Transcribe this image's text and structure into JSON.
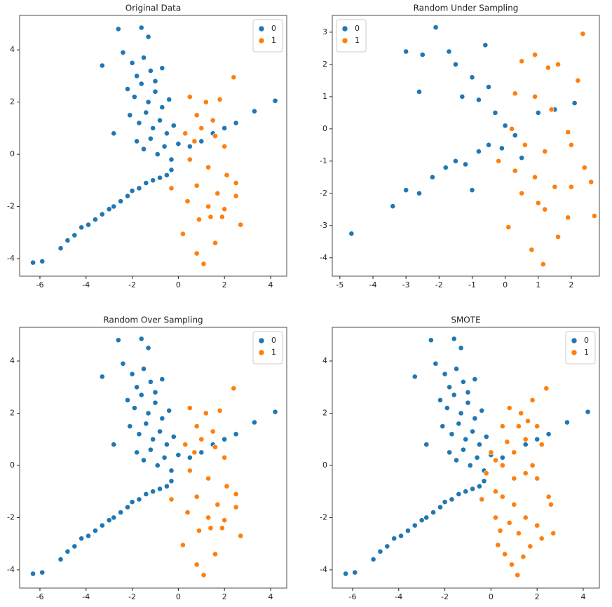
{
  "chart_data": [
    {
      "type": "scatter",
      "title": "Original Data",
      "xlim": [
        -6.88,
        4.7
      ],
      "ylim": [
        -4.67,
        5.32
      ],
      "xticks": [
        -6,
        -4,
        -2,
        0,
        2,
        4
      ],
      "yticks": [
        -4,
        -2,
        0,
        2,
        4
      ],
      "legend": "upper right",
      "series": [
        {
          "name": "0",
          "color": "#1f77b4",
          "x": [
            -6.3,
            -5.9,
            -5.1,
            -4.8,
            -4.5,
            -4.2,
            -3.9,
            -3.6,
            -3.3,
            -3.0,
            -2.8,
            -2.5,
            -2.2,
            -2.0,
            -1.7,
            -1.4,
            -1.1,
            -0.8,
            -0.5,
            -3.3,
            -2.6,
            -1.6,
            -1.3,
            -2.4,
            -2.0,
            -1.8,
            -1.5,
            -1.2,
            -1.0,
            -0.7,
            -2.2,
            -1.9,
            -1.6,
            -1.3,
            -1.0,
            -0.7,
            -0.4,
            -2.1,
            -1.7,
            -1.4,
            -1.1,
            -0.8,
            -0.5,
            -0.2,
            -1.8,
            -1.5,
            -1.2,
            -0.9,
            -0.6,
            -0.3,
            0.0,
            0.5,
            1.0,
            1.5,
            2.0,
            2.5,
            3.3,
            4.2,
            -0.3,
            -2.8
          ],
          "values": [
            -4.15,
            -4.1,
            -3.6,
            -3.3,
            -3.1,
            -2.8,
            -2.7,
            -2.5,
            -2.3,
            -2.1,
            -2.0,
            -1.8,
            -1.6,
            -1.4,
            -1.3,
            -1.1,
            -1.0,
            -0.9,
            -0.8,
            3.4,
            4.8,
            4.85,
            4.5,
            3.9,
            3.5,
            3.0,
            3.7,
            3.2,
            2.8,
            3.3,
            2.5,
            2.2,
            2.7,
            2.0,
            2.4,
            1.8,
            2.1,
            1.5,
            1.2,
            1.6,
            1.0,
            1.3,
            0.8,
            1.1,
            0.5,
            0.2,
            0.6,
            0.0,
            0.3,
            -0.2,
            0.4,
            0.3,
            0.5,
            0.8,
            1.0,
            1.2,
            1.65,
            2.05,
            -0.6,
            0.8
          ]
        },
        {
          "name": "1",
          "color": "#ff7f0e",
          "x": [
            0.5,
            0.8,
            1.2,
            1.5,
            1.8,
            2.4,
            0.3,
            0.7,
            1.0,
            1.6,
            2.0,
            0.5,
            1.3,
            2.1,
            0.8,
            1.7,
            2.5,
            0.4,
            1.3,
            2.0,
            2.5,
            0.2,
            0.9,
            1.4,
            1.6,
            2.7,
            0.8,
            1.1,
            -0.3,
            1.9
          ],
          "values": [
            2.2,
            1.5,
            2.0,
            1.3,
            2.1,
            2.95,
            0.8,
            0.5,
            1.0,
            0.7,
            0.3,
            -0.2,
            -0.5,
            -0.8,
            -1.2,
            -1.5,
            -1.1,
            -1.8,
            -2.0,
            -2.1,
            -1.6,
            -3.05,
            -2.5,
            -2.4,
            -3.4,
            -2.7,
            -3.8,
            -4.2,
            -1.3,
            -2.4
          ]
        }
      ]
    },
    {
      "type": "scatter",
      "title": "Random Under Sampling",
      "xlim": [
        -5.23,
        2.85
      ],
      "ylim": [
        -4.57,
        3.52
      ],
      "xticks": [
        -5,
        -4,
        -3,
        -2,
        -1,
        0,
        1,
        2
      ],
      "yticks": [
        -4,
        -3,
        -2,
        -1,
        0,
        1,
        2,
        3
      ],
      "legend": "upper left",
      "series": [
        {
          "name": "0",
          "color": "#1f77b4",
          "x": [
            -4.65,
            -3.4,
            -3.0,
            -2.6,
            -2.2,
            -1.8,
            -1.5,
            -1.2,
            -0.8,
            -0.5,
            -2.1,
            -3.0,
            -2.5,
            -1.7,
            -0.6,
            -1.5,
            -1.0,
            -0.5,
            -1.3,
            -0.8,
            -0.3,
            0.0,
            0.3,
            -0.1,
            0.5,
            1.0,
            1.5,
            2.1,
            -2.6,
            -1.0
          ],
          "values": [
            -3.25,
            -2.4,
            -1.9,
            -2.0,
            -1.5,
            -1.2,
            -1.0,
            -1.1,
            -0.7,
            -0.5,
            3.15,
            2.4,
            2.3,
            2.4,
            2.6,
            2.0,
            1.6,
            1.3,
            1.0,
            0.9,
            0.5,
            0.1,
            -0.2,
            -0.6,
            -0.9,
            0.5,
            0.6,
            0.8,
            1.15,
            -1.9
          ]
        },
        {
          "name": "1",
          "color": "#ff7f0e",
          "x": [
            0.5,
            0.9,
            1.3,
            1.6,
            2.35,
            2.2,
            0.3,
            0.9,
            1.4,
            1.9,
            0.2,
            0.6,
            1.2,
            2.0,
            0.3,
            0.9,
            1.5,
            2.4,
            0.5,
            1.0,
            2.0,
            2.6,
            0.1,
            0.8,
            1.15,
            1.6,
            1.9,
            2.7,
            -0.2,
            1.2
          ],
          "values": [
            2.1,
            2.3,
            1.9,
            2.0,
            2.95,
            1.5,
            1.1,
            1.0,
            0.6,
            -0.1,
            0.0,
            -0.5,
            -0.7,
            -0.5,
            -1.3,
            -1.5,
            -1.8,
            -1.2,
            -2.0,
            -2.3,
            -1.8,
            -1.65,
            -3.05,
            -3.75,
            -4.2,
            -3.35,
            -2.75,
            -2.7,
            -1.0,
            -2.5
          ]
        }
      ]
    },
    {
      "type": "scatter",
      "title": "Random Over Sampling",
      "xlim": [
        -6.88,
        4.7
      ],
      "ylim": [
        -4.7,
        5.29
      ],
      "xticks": [
        -6,
        -4,
        -2,
        0,
        2,
        4
      ],
      "yticks": [
        -4,
        -2,
        0,
        2,
        4
      ],
      "legend": "upper right",
      "series": [
        {
          "name": "0",
          "color": "#1f77b4",
          "x": [
            -6.3,
            -5.9,
            -5.1,
            -4.8,
            -4.5,
            -4.2,
            -3.9,
            -3.6,
            -3.3,
            -3.0,
            -2.8,
            -2.5,
            -2.2,
            -2.0,
            -1.7,
            -1.4,
            -1.1,
            -0.8,
            -0.5,
            -3.3,
            -2.6,
            -1.6,
            -1.3,
            -2.4,
            -2.0,
            -1.8,
            -1.5,
            -1.2,
            -1.0,
            -0.7,
            -2.2,
            -1.9,
            -1.6,
            -1.3,
            -1.0,
            -0.7,
            -0.4,
            -2.1,
            -1.7,
            -1.4,
            -1.1,
            -0.8,
            -0.5,
            -0.2,
            -1.8,
            -1.5,
            -1.2,
            -0.9,
            -0.6,
            -0.3,
            0.0,
            0.5,
            1.0,
            1.5,
            2.0,
            2.5,
            3.3,
            4.2,
            -0.3,
            -2.8
          ],
          "values": [
            -4.15,
            -4.1,
            -3.6,
            -3.3,
            -3.1,
            -2.8,
            -2.7,
            -2.5,
            -2.3,
            -2.1,
            -2.0,
            -1.8,
            -1.6,
            -1.4,
            -1.3,
            -1.1,
            -1.0,
            -0.9,
            -0.8,
            3.4,
            4.8,
            4.85,
            4.5,
            3.9,
            3.5,
            3.0,
            3.7,
            3.2,
            2.8,
            3.3,
            2.5,
            2.2,
            2.7,
            2.0,
            2.4,
            1.8,
            2.1,
            1.5,
            1.2,
            1.6,
            1.0,
            1.3,
            0.8,
            1.1,
            0.5,
            0.2,
            0.6,
            0.0,
            0.3,
            -0.2,
            0.4,
            0.3,
            0.5,
            0.8,
            1.0,
            1.2,
            1.65,
            2.05,
            -0.6,
            0.8
          ]
        },
        {
          "name": "1",
          "color": "#ff7f0e",
          "x": [
            0.5,
            0.8,
            1.2,
            1.5,
            1.8,
            2.4,
            0.3,
            0.7,
            1.0,
            1.6,
            2.0,
            0.5,
            1.3,
            2.1,
            0.8,
            1.7,
            2.5,
            0.4,
            1.3,
            2.0,
            2.5,
            0.2,
            0.9,
            1.4,
            1.6,
            2.7,
            0.8,
            1.1,
            -0.3,
            1.9
          ],
          "values": [
            2.2,
            1.5,
            2.0,
            1.3,
            2.1,
            2.95,
            0.8,
            0.5,
            1.0,
            0.7,
            0.3,
            -0.2,
            -0.5,
            -0.8,
            -1.2,
            -1.5,
            -1.1,
            -1.8,
            -2.0,
            -2.1,
            -1.6,
            -3.05,
            -2.5,
            -2.4,
            -3.4,
            -2.7,
            -3.8,
            -4.2,
            -1.3,
            -2.4
          ]
        }
      ]
    },
    {
      "type": "scatter",
      "title": "SMOTE",
      "xlim": [
        -6.88,
        4.7
      ],
      "ylim": [
        -4.7,
        5.29
      ],
      "xticks": [
        -6,
        -4,
        -2,
        0,
        2,
        4
      ],
      "yticks": [
        -4,
        -2,
        0,
        2,
        4
      ],
      "legend": "upper right",
      "series": [
        {
          "name": "0",
          "color": "#1f77b4",
          "x": [
            -6.3,
            -5.9,
            -5.1,
            -4.8,
            -4.5,
            -4.2,
            -3.9,
            -3.6,
            -3.3,
            -3.0,
            -2.8,
            -2.5,
            -2.2,
            -2.0,
            -1.7,
            -1.4,
            -1.1,
            -0.8,
            -0.5,
            -3.3,
            -2.6,
            -1.6,
            -1.3,
            -2.4,
            -2.0,
            -1.8,
            -1.5,
            -1.2,
            -1.0,
            -0.7,
            -2.2,
            -1.9,
            -1.6,
            -1.3,
            -1.0,
            -0.7,
            -0.4,
            -2.1,
            -1.7,
            -1.4,
            -1.1,
            -0.8,
            -0.5,
            -0.2,
            -1.8,
            -1.5,
            -1.2,
            -0.9,
            -0.6,
            -0.3,
            0.0,
            0.5,
            1.0,
            1.5,
            2.0,
            2.5,
            3.3,
            4.2,
            -0.3,
            -2.8
          ],
          "values": [
            -4.15,
            -4.1,
            -3.6,
            -3.3,
            -3.1,
            -2.8,
            -2.7,
            -2.5,
            -2.3,
            -2.1,
            -2.0,
            -1.8,
            -1.6,
            -1.4,
            -1.3,
            -1.1,
            -1.0,
            -0.9,
            -0.8,
            3.4,
            4.8,
            4.85,
            4.5,
            3.9,
            3.5,
            3.0,
            3.7,
            3.2,
            2.8,
            3.3,
            2.5,
            2.2,
            2.7,
            2.0,
            2.4,
            1.8,
            2.1,
            1.5,
            1.2,
            1.6,
            1.0,
            1.3,
            0.8,
            1.1,
            0.5,
            0.2,
            0.6,
            0.0,
            0.3,
            -0.2,
            0.4,
            0.3,
            0.5,
            0.8,
            1.0,
            1.2,
            1.65,
            2.05,
            -0.6,
            0.8
          ]
        },
        {
          "name": "1",
          "color": "#ff7f0e",
          "x": [
            0.2,
            0.0,
            0.5,
            0.8,
            1.3,
            1.8,
            2.4,
            2.0,
            1.5,
            1.0,
            0.5,
            1.0,
            1.5,
            2.0,
            2.6,
            2.7,
            2.0,
            1.5,
            1.0,
            0.5,
            0.2,
            0.4,
            0.3,
            0.6,
            0.9,
            1.15,
            1.4,
            1.7,
            2.2,
            1.2,
            0.8,
            -0.4,
            -0.2,
            0.2,
            0.7,
            1.2,
            1.6,
            2.2,
            1.8,
            2.5
          ],
          "values": [
            -1.0,
            0.5,
            1.5,
            2.2,
            2.0,
            2.5,
            2.95,
            1.5,
            1.0,
            0.5,
            0.0,
            -0.5,
            -0.3,
            -0.5,
            -1.5,
            -2.6,
            -2.3,
            -2.0,
            -1.5,
            -1.2,
            -2.0,
            -2.5,
            -3.05,
            -3.4,
            -3.8,
            -4.2,
            -3.5,
            -3.1,
            -2.8,
            -2.6,
            -2.2,
            -1.3,
            -0.3,
            0.2,
            0.9,
            1.5,
            1.7,
            0.8,
            0.0,
            -1.2
          ]
        }
      ]
    }
  ]
}
